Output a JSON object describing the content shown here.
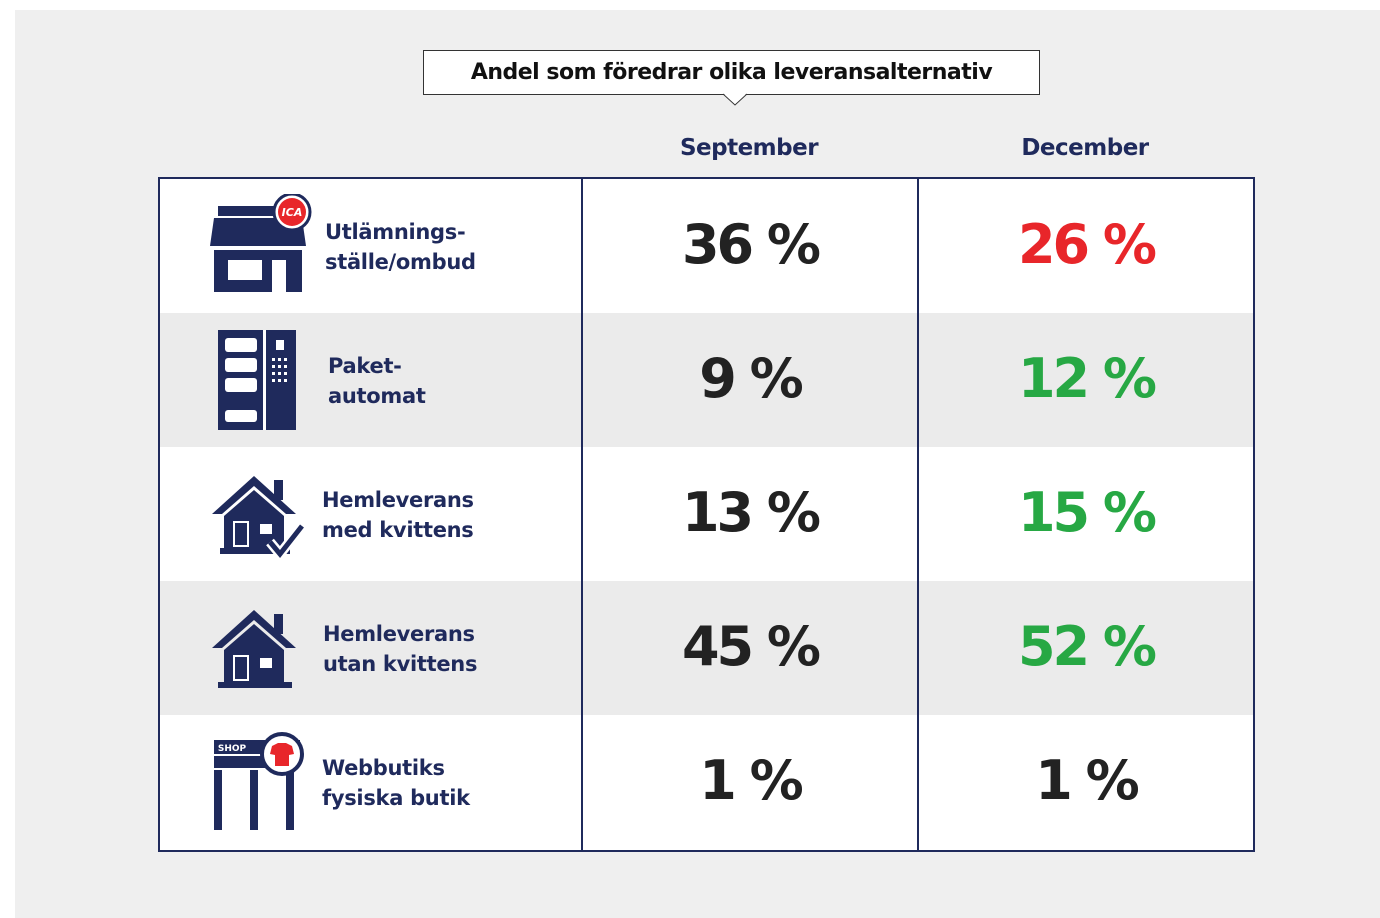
{
  "header": {
    "title": "Andel som föredrar olika leveransalternativ"
  },
  "table": {
    "columns": [
      "September",
      "December"
    ],
    "rows": [
      {
        "label": [
          "Utlämnings-",
          "ställe/ombud"
        ],
        "icon_text": "ICA",
        "values": [
          "36 %",
          "26 %"
        ],
        "colors": [
          "#222222",
          "#e8262a"
        ]
      },
      {
        "label": [
          "Paket-",
          "automat"
        ],
        "values": [
          "9 %",
          "12 %"
        ],
        "colors": [
          "#222222",
          "#27a844"
        ]
      },
      {
        "label": [
          "Hemleverans",
          "med kvittens"
        ],
        "values": [
          "13 %",
          "15 %"
        ],
        "colors": [
          "#222222",
          "#27a844"
        ]
      },
      {
        "label": [
          "Hemleverans",
          "utan kvittens"
        ],
        "values": [
          "45 %",
          "52 %"
        ],
        "colors": [
          "#222222",
          "#27a844"
        ]
      },
      {
        "label": [
          "Webbutiks",
          "fysiska butik"
        ],
        "icon_text": "SHOP",
        "values": [
          "1 %",
          "1 %"
        ],
        "colors": [
          "#222222",
          "#222222"
        ]
      }
    ]
  }
}
